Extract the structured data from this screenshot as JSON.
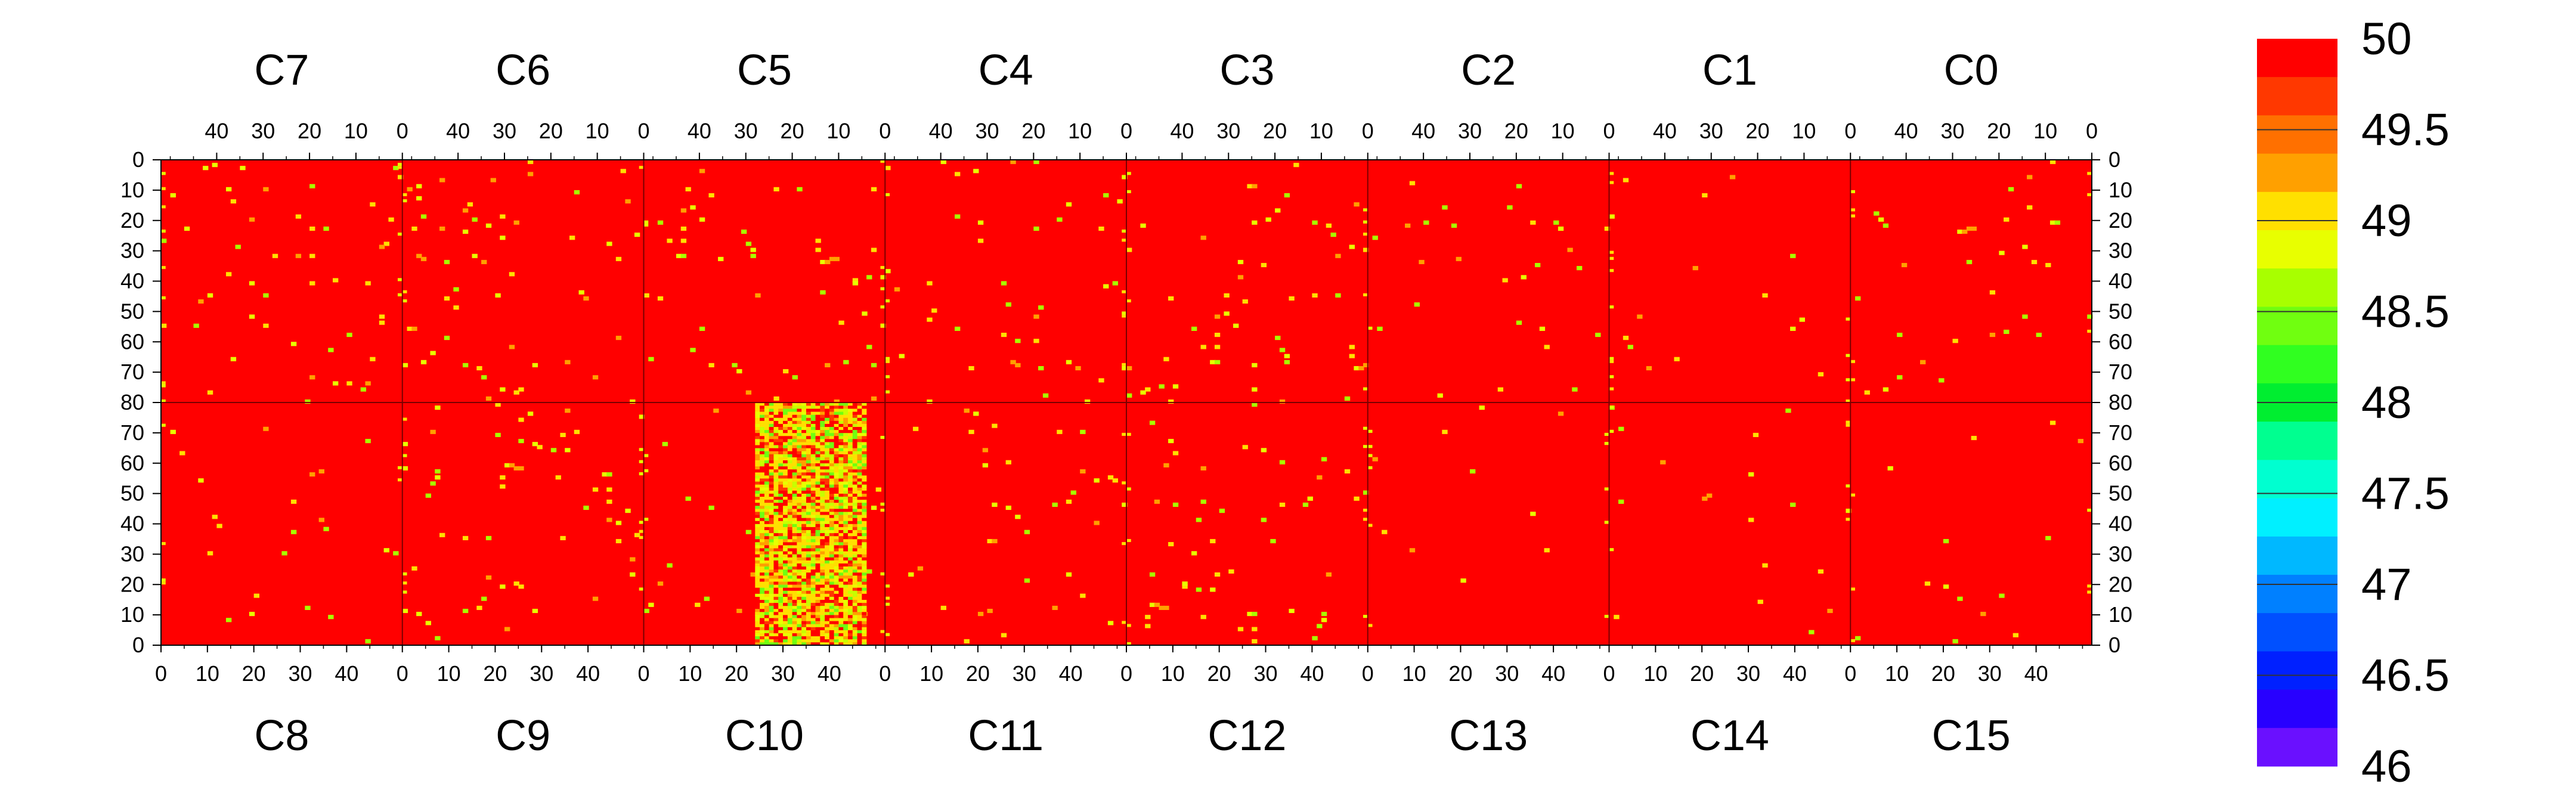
{
  "chart_data": {
    "type": "heatmap",
    "chips_top": [
      "C7",
      "C6",
      "C5",
      "C4",
      "C3",
      "C2",
      "C1",
      "C0"
    ],
    "chips_bottom": [
      "C8",
      "C9",
      "C10",
      "C11",
      "C12",
      "C13",
      "C14",
      "C15"
    ],
    "cols_per_chip": 52,
    "rows_per_half": 80,
    "top_x_ticks": [
      "40",
      "30",
      "20",
      "10",
      "0"
    ],
    "bottom_x_ticks": [
      "0",
      "10",
      "20",
      "30",
      "40"
    ],
    "y_ticks_top": [
      "0",
      "10",
      "20",
      "30",
      "40",
      "50",
      "60",
      "70",
      "80"
    ],
    "y_ticks_bottom": [
      "70",
      "60",
      "50",
      "40",
      "30",
      "20",
      "10",
      "0"
    ],
    "zlim": [
      46,
      50
    ],
    "background_value": 50,
    "colorbar": {
      "labels": [
        "50",
        "49.5",
        "49",
        "48.5",
        "48",
        "47.5",
        "47",
        "46.5",
        "46"
      ],
      "colors": [
        "#ff0000",
        "#ff3800",
        "#ff7000",
        "#ffa000",
        "#ffe000",
        "#e8ff00",
        "#a8ff00",
        "#70ff10",
        "#30ff20",
        "#00ee30",
        "#00ff90",
        "#00ffd0",
        "#00f0ff",
        "#00b8ff",
        "#0080ff",
        "#0050ff",
        "#0020ff",
        "#2800ff",
        "#6a10ff"
      ]
    },
    "anomaly_region": {
      "chip": "C10",
      "cols": [
        24,
        47
      ],
      "rows": [
        0,
        79
      ],
      "values_range": [
        48.5,
        50
      ]
    },
    "hot_pixel_value": 49
  }
}
